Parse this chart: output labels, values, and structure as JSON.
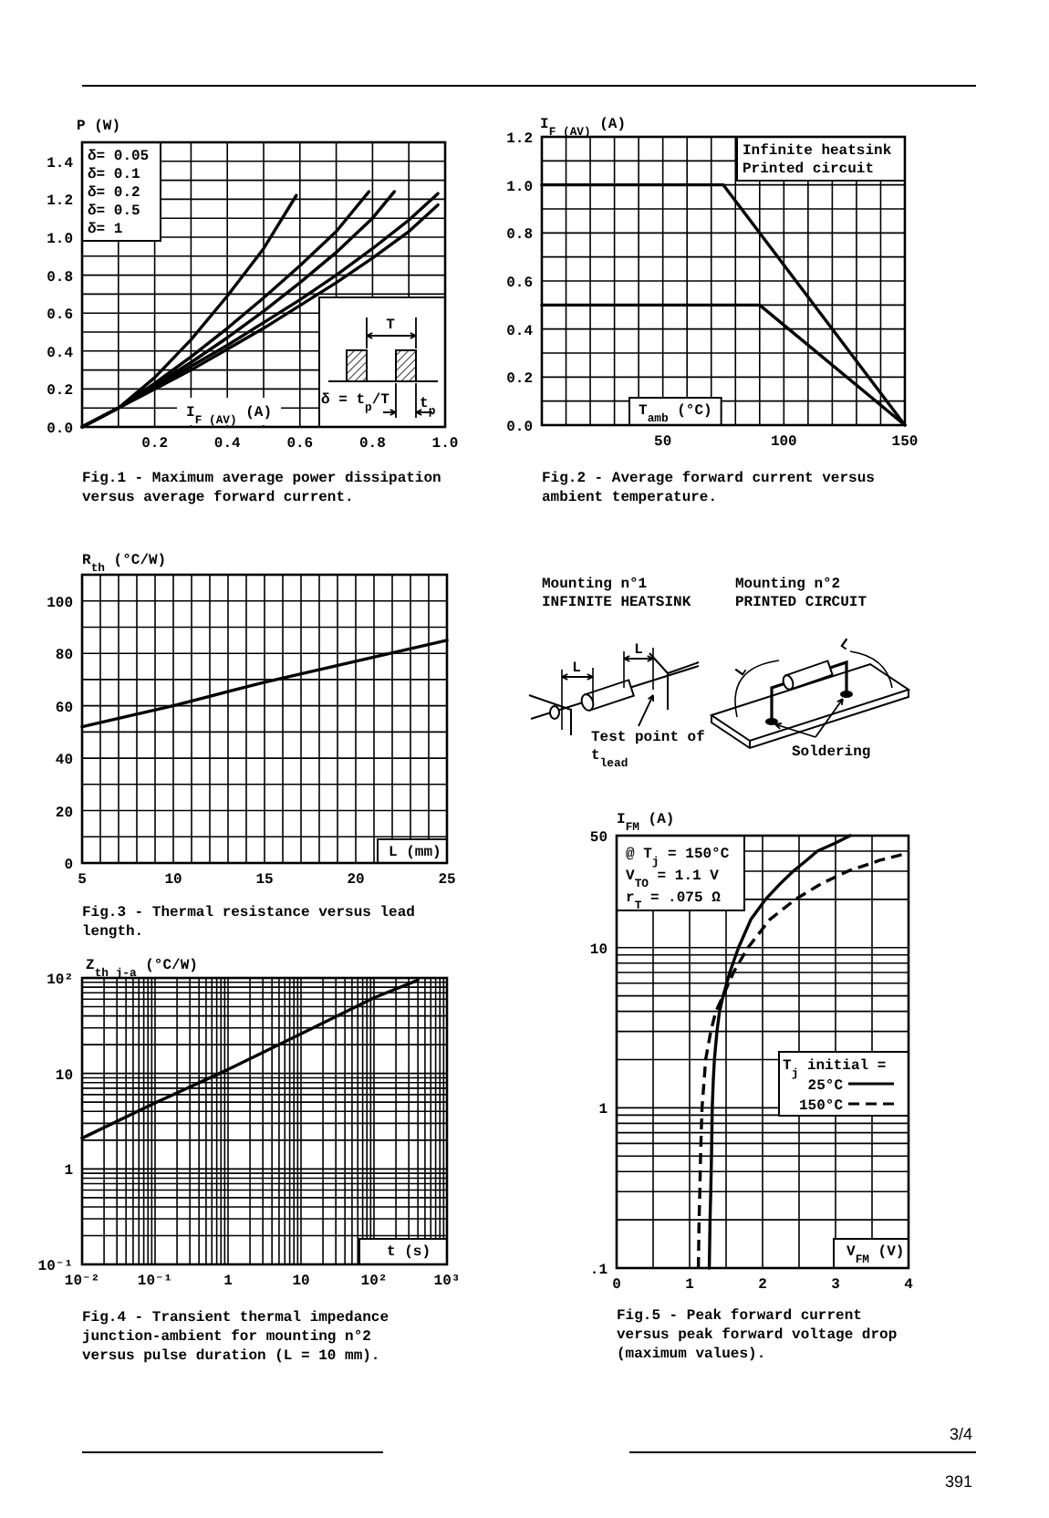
{
  "chart_data": [
    {
      "type": "line",
      "title": "Fig.1 - Maximum average power dissipation versus average forward current.",
      "xlabel": "I$_{F (AV)}$ (A)",
      "ylabel": "P (W)",
      "xlim": [
        0,
        1
      ],
      "ylim": [
        0,
        1.5
      ],
      "xticks": [
        {
          "value": 0.1,
          "label": null
        },
        0.2,
        {
          "value": 0.3,
          "label": null
        },
        0.4,
        {
          "value": 0.5,
          "label": null
        },
        0.6,
        {
          "value": 0.7,
          "label": null
        },
        0.8,
        {
          "value": 0.9,
          "label": null
        },
        {
          "value": 1,
          "label": "1.0"
        }
      ],
      "yticks": [
        {
          "value": 0,
          "label": "0.0"
        },
        {
          "value": 0.1,
          "label": null
        },
        0.2,
        {
          "value": 0.3,
          "label": null
        },
        0.4,
        {
          "value": 0.5,
          "label": null
        },
        0.6,
        {
          "value": 0.7,
          "label": null
        },
        0.8,
        {
          "value": 0.9,
          "label": null
        },
        {
          "value": 1,
          "label": "1.0"
        },
        {
          "value": 1.1,
          "label": null
        },
        1.2,
        {
          "value": 1.3,
          "label": null
        },
        1.4
      ],
      "grid": true,
      "annotations": [
        "δ= 0.05",
        "δ= 0.1",
        "δ= 0.2",
        "δ= 0.5",
        "δ= 1",
        "T",
        "δ = t$_{p}$/T",
        "t$_{p}$"
      ],
      "series": [
        {
          "color": "#000000",
          "x": [
            0,
            0.1,
            0.2,
            0.3,
            0.4,
            0.5,
            0.59
          ],
          "values": [
            0,
            0.1,
            0.26,
            0.46,
            0.69,
            0.94,
            1.22
          ]
        },
        {
          "color": "#000000",
          "x": [
            0,
            0.1,
            0.2,
            0.3,
            0.4,
            0.5,
            0.6,
            0.7,
            0.79
          ],
          "values": [
            0,
            0.1,
            0.23,
            0.37,
            0.52,
            0.68,
            0.85,
            1.03,
            1.24
          ]
        },
        {
          "color": "#000000",
          "x": [
            0,
            0.1,
            0.2,
            0.3,
            0.4,
            0.5,
            0.6,
            0.7,
            0.8,
            0.86
          ],
          "values": [
            0,
            0.1,
            0.22,
            0.34,
            0.47,
            0.61,
            0.76,
            0.92,
            1.1,
            1.24
          ]
        },
        {
          "color": "#000000",
          "x": [
            0,
            0.1,
            0.2,
            0.3,
            0.4,
            0.5,
            0.6,
            0.7,
            0.8,
            0.9,
            0.98
          ],
          "values": [
            0,
            0.1,
            0.21,
            0.32,
            0.43,
            0.55,
            0.67,
            0.8,
            0.94,
            1.09,
            1.23
          ]
        },
        {
          "color": "#000000",
          "x": [
            0,
            0.1,
            0.2,
            0.3,
            0.4,
            0.5,
            0.6,
            0.7,
            0.8,
            0.9,
            0.98
          ],
          "values": [
            0,
            0.1,
            0.2,
            0.3,
            0.41,
            0.52,
            0.64,
            0.76,
            0.89,
            1.03,
            1.17
          ]
        }
      ]
    },
    {
      "type": "line",
      "title": "Fig.2 - Average forward current versus ambient temperature.",
      "xlabel": "T$_{amb}$ (°C)",
      "ylabel": "I$_{F (AV)}$ (A)",
      "xlim": [
        0,
        150
      ],
      "ylim": [
        0,
        1.2
      ],
      "xticks": [
        {
          "value": 10,
          "label": null
        },
        {
          "value": 20,
          "label": null
        },
        {
          "value": 30,
          "label": null
        },
        {
          "value": 40,
          "label": null
        },
        50,
        {
          "value": 60,
          "label": null
        },
        {
          "value": 70,
          "label": null
        },
        {
          "value": 80,
          "label": null
        },
        {
          "value": 90,
          "label": null
        },
        100,
        {
          "value": 110,
          "label": null
        },
        {
          "value": 120,
          "label": null
        },
        {
          "value": 130,
          "label": null
        },
        {
          "value": 140,
          "label": null
        },
        150
      ],
      "yticks": [
        {
          "value": 0,
          "label": "0.0"
        },
        {
          "value": 0.1,
          "label": null
        },
        0.2,
        {
          "value": 0.3,
          "label": null
        },
        0.4,
        {
          "value": 0.5,
          "label": null
        },
        0.6,
        {
          "value": 0.7,
          "label": null
        },
        0.8,
        {
          "value": 0.9,
          "label": null
        },
        {
          "value": 1,
          "label": "1.0"
        },
        {
          "value": 1.1,
          "label": null
        },
        1.2
      ],
      "grid": true,
      "legend": "top right",
      "series": [
        {
          "name": "Infinite heatsink",
          "color": "#000000",
          "x": [
            0,
            75,
            150
          ],
          "values": [
            1.0,
            1.0,
            0
          ]
        },
        {
          "name": "Printed circuit",
          "color": "#000000",
          "x": [
            0,
            90,
            150
          ],
          "values": [
            0.5,
            0.5,
            0
          ]
        }
      ]
    },
    {
      "type": "line",
      "title": "Fig.3 - Thermal resistance versus lead length.",
      "xlabel": "L (mm)",
      "ylabel": "R$_{th}$ (°C/W)",
      "xlim": [
        5,
        25
      ],
      "ylim": [
        0,
        110
      ],
      "xticks": [
        5,
        {
          "value": 6,
          "label": null
        },
        {
          "value": 7,
          "label": null
        },
        {
          "value": 8,
          "label": null
        },
        {
          "value": 9,
          "label": null
        },
        10,
        {
          "value": 11,
          "label": null
        },
        {
          "value": 12,
          "label": null
        },
        {
          "value": 13,
          "label": null
        },
        {
          "value": 14,
          "label": null
        },
        15,
        {
          "value": 16,
          "label": null
        },
        {
          "value": 17,
          "label": null
        },
        {
          "value": 18,
          "label": null
        },
        {
          "value": 19,
          "label": null
        },
        20,
        {
          "value": 21,
          "label": null
        },
        {
          "value": 22,
          "label": null
        },
        {
          "value": 23,
          "label": null
        },
        {
          "value": 24,
          "label": null
        },
        25
      ],
      "yticks": [
        0,
        {
          "value": 10,
          "label": null
        },
        20,
        {
          "value": 30,
          "label": null
        },
        40,
        {
          "value": 50,
          "label": null
        },
        60,
        {
          "value": 70,
          "label": null
        },
        80,
        {
          "value": 90,
          "label": null
        },
        100
      ],
      "grid": true,
      "series": [
        {
          "color": "#000000",
          "x": [
            5,
            10,
            15,
            20,
            25
          ],
          "values": [
            52,
            60,
            69,
            77,
            85
          ]
        }
      ]
    },
    {
      "type": "other",
      "annotations": [
        "Mounting n°1",
        "INFINITE HEATSINK",
        "Mounting n°2",
        "PRINTED CIRCUIT",
        "L",
        "L",
        "Test point of",
        "t$_{lead}$",
        "L",
        "L",
        "Soldering",
        "3/4",
        "391"
      ]
    },
    {
      "type": "line",
      "title": "Fig.4 - Transient thermal impedance junction-ambient for mounting n°2 versus pulse duration (L = 10 mm).",
      "xlabel": "t (s)",
      "ylabel": "Z$_{th j-a}$ (°C/W)",
      "log": "xy",
      "xlim": [
        0.01,
        1000
      ],
      "ylim": [
        0.1,
        100
      ],
      "xticks": [
        {
          "value": 0.01,
          "label": "10⁻²"
        },
        {
          "value": 0.02,
          "label": null
        },
        {
          "value": 0.03,
          "label": null
        },
        {
          "value": 0.04,
          "label": null
        },
        {
          "value": 0.05,
          "label": null
        },
        {
          "value": 0.06,
          "label": null
        },
        {
          "value": 0.07,
          "label": null
        },
        {
          "value": 0.08,
          "label": null
        },
        {
          "value": 0.09,
          "label": null
        },
        {
          "value": 0.1,
          "label": "10⁻¹"
        },
        {
          "value": 0.2,
          "label": null
        },
        {
          "value": 0.3,
          "label": null
        },
        {
          "value": 0.4,
          "label": null
        },
        {
          "value": 0.5,
          "label": null
        },
        {
          "value": 0.6,
          "label": null
        },
        {
          "value": 0.7,
          "label": null
        },
        {
          "value": 0.8,
          "label": null
        },
        {
          "value": 0.9,
          "label": null
        },
        1,
        {
          "value": 2,
          "label": null
        },
        {
          "value": 3,
          "label": null
        },
        {
          "value": 4,
          "label": null
        },
        {
          "value": 5,
          "label": null
        },
        {
          "value": 6,
          "label": null
        },
        {
          "value": 7,
          "label": null
        },
        {
          "value": 8,
          "label": null
        },
        {
          "value": 9,
          "label": null
        },
        10,
        {
          "value": 20,
          "label": null
        },
        {
          "value": 30,
          "label": null
        },
        {
          "value": 40,
          "label": null
        },
        {
          "value": 50,
          "label": null
        },
        {
          "value": 60,
          "label": null
        },
        {
          "value": 70,
          "label": null
        },
        {
          "value": 80,
          "label": null
        },
        {
          "value": 90,
          "label": null
        },
        {
          "value": 100,
          "label": "10²"
        },
        {
          "value": 200,
          "label": null
        },
        {
          "value": 300,
          "label": null
        },
        {
          "value": 400,
          "label": null
        },
        {
          "value": 500,
          "label": null
        },
        {
          "value": 600,
          "label": null
        },
        {
          "value": 700,
          "label": null
        },
        {
          "value": 800,
          "label": null
        },
        {
          "value": 900,
          "label": null
        },
        {
          "value": 1000,
          "label": "10³"
        }
      ],
      "yticks": [
        {
          "value": 0.1,
          "label": "10⁻¹"
        },
        {
          "value": 0.2,
          "label": null
        },
        {
          "value": 0.3,
          "label": null
        },
        {
          "value": 0.4,
          "label": null
        },
        {
          "value": 0.5,
          "label": null
        },
        {
          "value": 0.6,
          "label": null
        },
        {
          "value": 0.7,
          "label": null
        },
        {
          "value": 0.8,
          "label": null
        },
        {
          "value": 0.9,
          "label": null
        },
        1,
        {
          "value": 2,
          "label": null
        },
        {
          "value": 3,
          "label": null
        },
        {
          "value": 4,
          "label": null
        },
        {
          "value": 5,
          "label": null
        },
        {
          "value": 6,
          "label": null
        },
        {
          "value": 7,
          "label": null
        },
        {
          "value": 8,
          "label": null
        },
        {
          "value": 9,
          "label": null
        },
        10,
        {
          "value": 20,
          "label": null
        },
        {
          "value": 30,
          "label": null
        },
        {
          "value": 40,
          "label": null
        },
        {
          "value": 50,
          "label": null
        },
        {
          "value": 60,
          "label": null
        },
        {
          "value": 70,
          "label": null
        },
        {
          "value": 80,
          "label": null
        },
        {
          "value": 90,
          "label": null
        },
        {
          "value": 100,
          "label": "10²"
        }
      ],
      "grid": true,
      "series": [
        {
          "color": "#000000",
          "x": [
            0.01,
            0.1,
            1,
            10,
            100,
            400
          ],
          "values": [
            2.1,
            4.9,
            11,
            26,
            62,
            95
          ]
        }
      ]
    },
    {
      "type": "line",
      "title": "Fig.5 - Peak forward current versus peak forward voltage drop (maximum values).",
      "xlabel": "V$_{FM}$ (V)",
      "ylabel": "I$_{FM}$ (A)",
      "log": "y",
      "xlim": [
        0,
        4
      ],
      "ylim": [
        0.1,
        50
      ],
      "xticks": [
        0,
        {
          "value": 0.5,
          "label": null
        },
        1,
        {
          "value": 1.5,
          "label": null
        },
        2,
        {
          "value": 2.5,
          "label": null
        },
        3,
        {
          "value": 3.5,
          "label": null
        },
        4
      ],
      "yticks": [
        {
          "value": 0.1,
          "label": ".1"
        },
        {
          "value": 0.2,
          "label": null
        },
        {
          "value": 0.3,
          "label": null
        },
        {
          "value": 0.4,
          "label": null
        },
        {
          "value": 0.5,
          "label": null
        },
        {
          "value": 0.6,
          "label": null
        },
        {
          "value": 0.7,
          "label": null
        },
        {
          "value": 0.8,
          "label": null
        },
        {
          "value": 0.9,
          "label": null
        },
        1,
        {
          "value": 2,
          "label": null
        },
        {
          "value": 3,
          "label": null
        },
        {
          "value": 4,
          "label": null
        },
        {
          "value": 5,
          "label": null
        },
        {
          "value": 6,
          "label": null
        },
        {
          "value": 7,
          "label": null
        },
        {
          "value": 8,
          "label": null
        },
        {
          "value": 9,
          "label": null
        },
        10,
        {
          "value": 20,
          "label": null
        },
        {
          "value": 30,
          "label": null
        },
        {
          "value": 40,
          "label": null
        },
        50
      ],
      "grid": true,
      "legend": "right",
      "legend_title": "T$_{j}$ initial =",
      "annotations": [
        "@ T$_{j}$ = 150°C",
        "V$_{TO}$ = 1.1 V",
        "r$_{T}$ = .075 Ω"
      ],
      "series": [
        {
          "name": "25°C",
          "color": "#000000",
          "line_style": "solid",
          "x": [
            1.27,
            1.28,
            1.29,
            1.3,
            1.31,
            1.325,
            1.34,
            1.375,
            1.41,
            1.46,
            1.55,
            1.67,
            1.84,
            2.04,
            2.24,
            2.42,
            2.6,
            2.75,
            3.0,
            3.2
          ],
          "values": [
            0.1,
            0.2,
            0.3,
            0.5,
            1,
            1.5,
            2,
            3,
            4,
            5,
            7,
            10,
            15,
            20,
            25,
            30,
            35,
            40,
            45,
            50
          ]
        },
        {
          "name": "150°C",
          "color": "#000000",
          "line_style": "dashed",
          "x": [
            1.12,
            1.13,
            1.14,
            1.15,
            1.17,
            1.2,
            1.22,
            1.29,
            1.36,
            1.46,
            1.6,
            1.8,
            2.1,
            2.45,
            2.8,
            3.17,
            3.6,
            4.0
          ],
          "values": [
            0.1,
            0.2,
            0.3,
            0.5,
            1,
            1.5,
            2,
            3,
            4,
            5,
            7,
            10,
            15,
            20,
            25,
            30,
            35,
            39
          ]
        }
      ]
    }
  ]
}
